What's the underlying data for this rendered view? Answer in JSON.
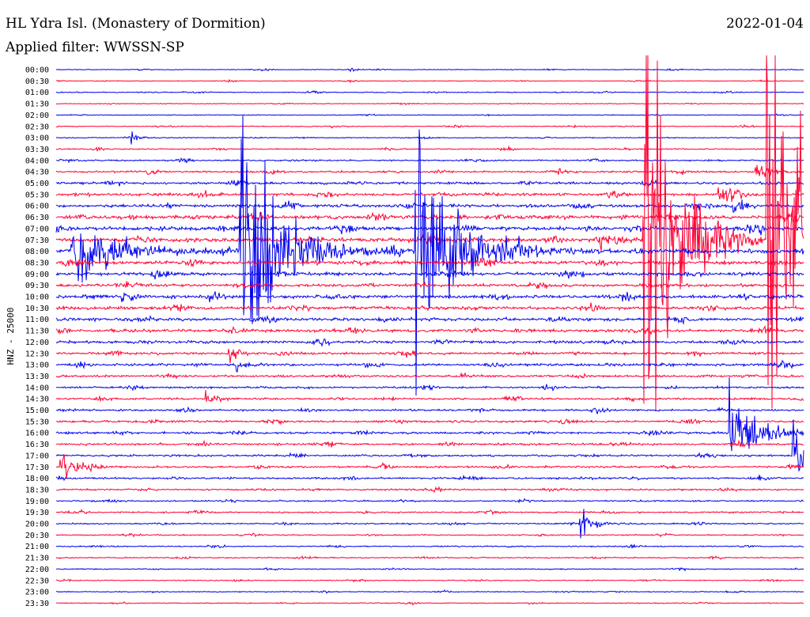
{
  "header": {
    "station": "HL Ydra Isl. (Monastery of Dormition)",
    "date": "2022-01-04",
    "filter": "Applied filter: WWSSN-SP"
  },
  "chart_data": {
    "type": "line",
    "title": "HL Ydra Isl. (Monastery of Dormition)",
    "subtitle": "Applied filter: WWSSN-SP",
    "date": "2022-01-04",
    "ylabel": "HNZ - 25000",
    "rows": [
      "00:00",
      "00:30",
      "01:00",
      "01:30",
      "02:00",
      "02:30",
      "03:00",
      "03:30",
      "04:00",
      "04:30",
      "05:00",
      "05:30",
      "06:00",
      "06:30",
      "07:00",
      "07:30",
      "08:00",
      "08:30",
      "09:00",
      "09:30",
      "10:00",
      "10:30",
      "11:00",
      "11:30",
      "12:00",
      "12:30",
      "13:00",
      "13:30",
      "14:00",
      "14:30",
      "15:00",
      "15:30",
      "16:00",
      "16:30",
      "17:00",
      "17:30",
      "18:00",
      "18:30",
      "19:00",
      "19:30",
      "20:00",
      "20:30",
      "21:00",
      "21:30",
      "22:00",
      "22:30",
      "23:00",
      "23:30"
    ],
    "series_colors": [
      "#0000ee",
      "#ff0033"
    ],
    "noise_level": [
      0.3,
      0.3,
      0.4,
      0.3,
      0.3,
      0.4,
      0.4,
      0.5,
      0.6,
      0.8,
      1.0,
      1.2,
      1.3,
      1.6,
      1.6,
      1.8,
      1.6,
      1.5,
      1.4,
      1.3,
      1.4,
      1.3,
      1.3,
      1.2,
      1.1,
      1.0,
      1.0,
      0.9,
      0.8,
      0.8,
      0.8,
      0.9,
      0.9,
      0.9,
      0.8,
      0.8,
      0.8,
      0.7,
      0.6,
      0.6,
      0.6,
      0.5,
      0.5,
      0.5,
      0.4,
      0.4,
      0.4,
      0.4
    ],
    "events": [
      {
        "row": 16,
        "t": 0.02,
        "amp": 40,
        "dur": 0.12
      },
      {
        "row": 16,
        "t": 0.245,
        "amp": 160,
        "dur": 0.1
      },
      {
        "row": 16,
        "t": 0.48,
        "amp": 160,
        "dur": 0.1
      },
      {
        "row": 15,
        "t": 0.785,
        "amp": 280,
        "dur": 0.09
      },
      {
        "row": 15,
        "t": 0.95,
        "amp": 260,
        "dur": 0.06
      },
      {
        "row": 15,
        "t": 0.99,
        "amp": 150,
        "dur": 0.03
      },
      {
        "row": 15,
        "t": 0.725,
        "amp": 18,
        "dur": 0.03
      },
      {
        "row": 11,
        "t": 0.885,
        "amp": 15,
        "dur": 0.03
      },
      {
        "row": 9,
        "t": 0.935,
        "amp": 16,
        "dur": 0.03
      },
      {
        "row": 12,
        "t": 0.905,
        "amp": 14,
        "dur": 0.025
      },
      {
        "row": 32,
        "t": 0.9,
        "amp": 60,
        "dur": 0.06
      },
      {
        "row": 34,
        "t": 0.985,
        "amp": 45,
        "dur": 0.04
      },
      {
        "row": 35,
        "t": 0.005,
        "amp": 18,
        "dur": 0.04
      },
      {
        "row": 40,
        "t": 0.7,
        "amp": 20,
        "dur": 0.03
      },
      {
        "row": 25,
        "t": 0.23,
        "amp": 16,
        "dur": 0.02
      },
      {
        "row": 26,
        "t": 0.24,
        "amp": 12,
        "dur": 0.02
      },
      {
        "row": 6,
        "t": 0.1,
        "amp": 6,
        "dur": 0.02
      },
      {
        "row": 20,
        "t": 0.087,
        "amp": 8,
        "dur": 0.03
      },
      {
        "row": 29,
        "t": 0.2,
        "amp": 9,
        "dur": 0.02
      },
      {
        "row": 0,
        "t": 0.39,
        "amp": 3,
        "dur": 0.02
      }
    ]
  }
}
